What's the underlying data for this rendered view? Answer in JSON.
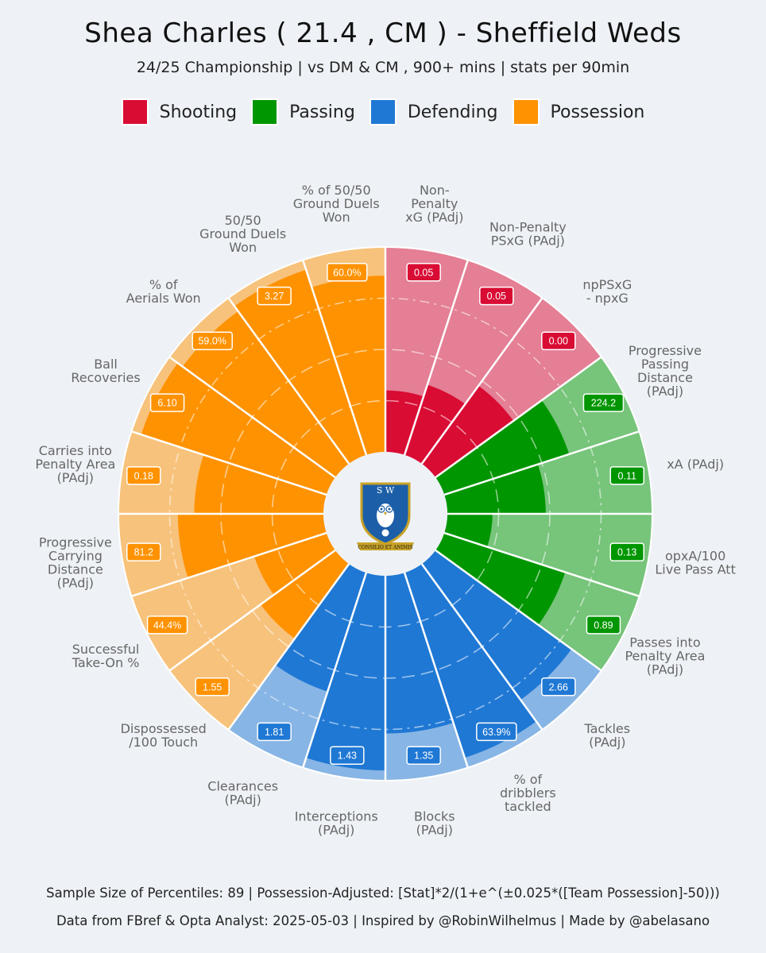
{
  "title": "Shea Charles  ( 21.4 , CM ) - Sheffield Weds",
  "subtitle": "24/25 Championship | vs DM & CM , 900+ mins | stats per 90min",
  "legend": [
    {
      "label": "Shooting",
      "color": "#d90c34"
    },
    {
      "label": "Passing",
      "color": "#009600"
    },
    {
      "label": "Defending",
      "color": "#1f78d4"
    },
    {
      "label": "Possession",
      "color": "#ff9200"
    }
  ],
  "footer": {
    "line1": "Sample Size of Percentiles:  89   |  Possession-Adjusted: [Stat]*2/(1+e^(±0.025*([Team Possession]-50)))",
    "line2": "Data from FBref & Opta Analyst: 2025-05-03  |  Inspired by @RobinWilhelmus  |  Made by @abelasano"
  },
  "crest": {
    "motto": "CONSILIO ET ANIMIS",
    "monogram": "S W"
  },
  "chart_data": {
    "type": "radial-bar",
    "scale": [
      0,
      100
    ],
    "metrics": [
      {
        "label": [
          "Non-",
          "Penalty",
          "xG (PAdj)"
        ],
        "value": "0.05",
        "percentile": 30,
        "category": "Shooting"
      },
      {
        "label": [
          "Non-Penalty",
          "PSxG (PAdj)"
        ],
        "value": "0.05",
        "percentile": 36,
        "category": "Shooting"
      },
      {
        "label": [
          "npPSxG",
          "- npxG"
        ],
        "value": "0.00",
        "percentile": 47,
        "category": "Shooting"
      },
      {
        "label": [
          "Progressive",
          "Passing",
          "Distance",
          "(PAdj)"
        ],
        "value": "224.2",
        "percentile": 64,
        "category": "Passing"
      },
      {
        "label": [
          "xA (PAdj)"
        ],
        "value": "0.11",
        "percentile": 48,
        "category": "Passing"
      },
      {
        "label": [
          "opxA/100",
          "Live Pass Att"
        ],
        "value": "0.13",
        "percentile": 22,
        "category": "Passing"
      },
      {
        "label": [
          "Passes into",
          "Penalty Area",
          "(PAdj)"
        ],
        "value": "0.89",
        "percentile": 62,
        "category": "Passing"
      },
      {
        "label": [
          "Tackles",
          "(PAdj)"
        ],
        "value": "2.66",
        "percentile": 82,
        "category": "Defending"
      },
      {
        "label": [
          "% of",
          "dribblers",
          "tackled"
        ],
        "value": "63.9%",
        "percentile": 95,
        "category": "Defending"
      },
      {
        "label": [
          "Blocks",
          "(PAdj)"
        ],
        "value": "1.35",
        "percentile": 77,
        "category": "Defending"
      },
      {
        "label": [
          "Interceptions",
          "(PAdj)"
        ],
        "value": "1.43",
        "percentile": 95,
        "category": "Defending"
      },
      {
        "label": [
          "Clearances",
          "(PAdj)"
        ],
        "value": "1.81",
        "percentile": 61,
        "category": "Defending"
      },
      {
        "label": [
          "Dispossessed",
          "/100 Touch"
        ],
        "value": "1.55",
        "percentile": 45,
        "category": "Possession"
      },
      {
        "label": [
          "Successful",
          "Take-On %"
        ],
        "value": "44.4%",
        "percentile": 37,
        "category": "Possession"
      },
      {
        "label": [
          "Progressive",
          "Carrying",
          "Distance",
          "(PAdj)"
        ],
        "value": "81.2",
        "percentile": 71,
        "category": "Possession"
      },
      {
        "label": [
          "Carries into",
          "Penalty Area",
          "(PAdj)"
        ],
        "value": "0.18",
        "percentile": 63,
        "category": "Possession"
      },
      {
        "label": [
          "Ball",
          "Recoveries"
        ],
        "value": "6.10",
        "percentile": 95,
        "category": "Possession"
      },
      {
        "label": [
          "% of",
          "Aerials Won"
        ],
        "value": "59.0%",
        "percentile": 92,
        "category": "Possession"
      },
      {
        "label": [
          "50/50",
          "Ground Duels",
          "Won"
        ],
        "value": "3.27",
        "percentile": 95,
        "category": "Possession"
      },
      {
        "label": [
          "% of 50/50",
          "Ground Duels",
          "Won"
        ],
        "value": "60.0%",
        "percentile": 86,
        "category": "Possession"
      }
    ]
  }
}
